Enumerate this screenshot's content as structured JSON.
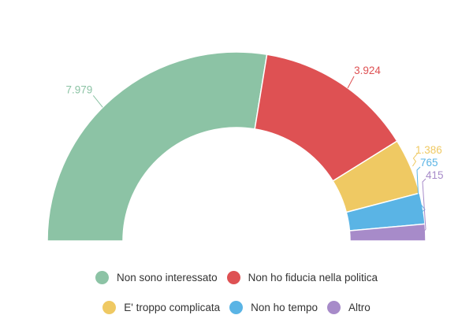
{
  "chart_data": {
    "type": "pie",
    "subtype": "semi-donut",
    "title": "",
    "categories": [
      "Non sono interessato",
      "Non ho fiducia nella politica",
      "E' troppo complicata",
      "Non ho tempo",
      "Altro"
    ],
    "values": [
      7979,
      3924,
      1386,
      765,
      415
    ],
    "value_labels": [
      "7.979",
      "3.924",
      "1.386",
      "765",
      "415"
    ],
    "colors": [
      "#8cc3a5",
      "#de5153",
      "#efc963",
      "#5ab4e5",
      "#a78bc9"
    ],
    "legend_position": "bottom"
  },
  "legend": {
    "row1": [
      {
        "label": "Non sono interessato",
        "color": "#8cc3a5"
      },
      {
        "label": "Non ho fiducia nella politica",
        "color": "#de5153"
      }
    ],
    "row2": [
      {
        "label": "E' troppo complicata",
        "color": "#efc963"
      },
      {
        "label": "Non ho tempo",
        "color": "#5ab4e5"
      },
      {
        "label": "Altro",
        "color": "#a78bc9"
      }
    ]
  }
}
